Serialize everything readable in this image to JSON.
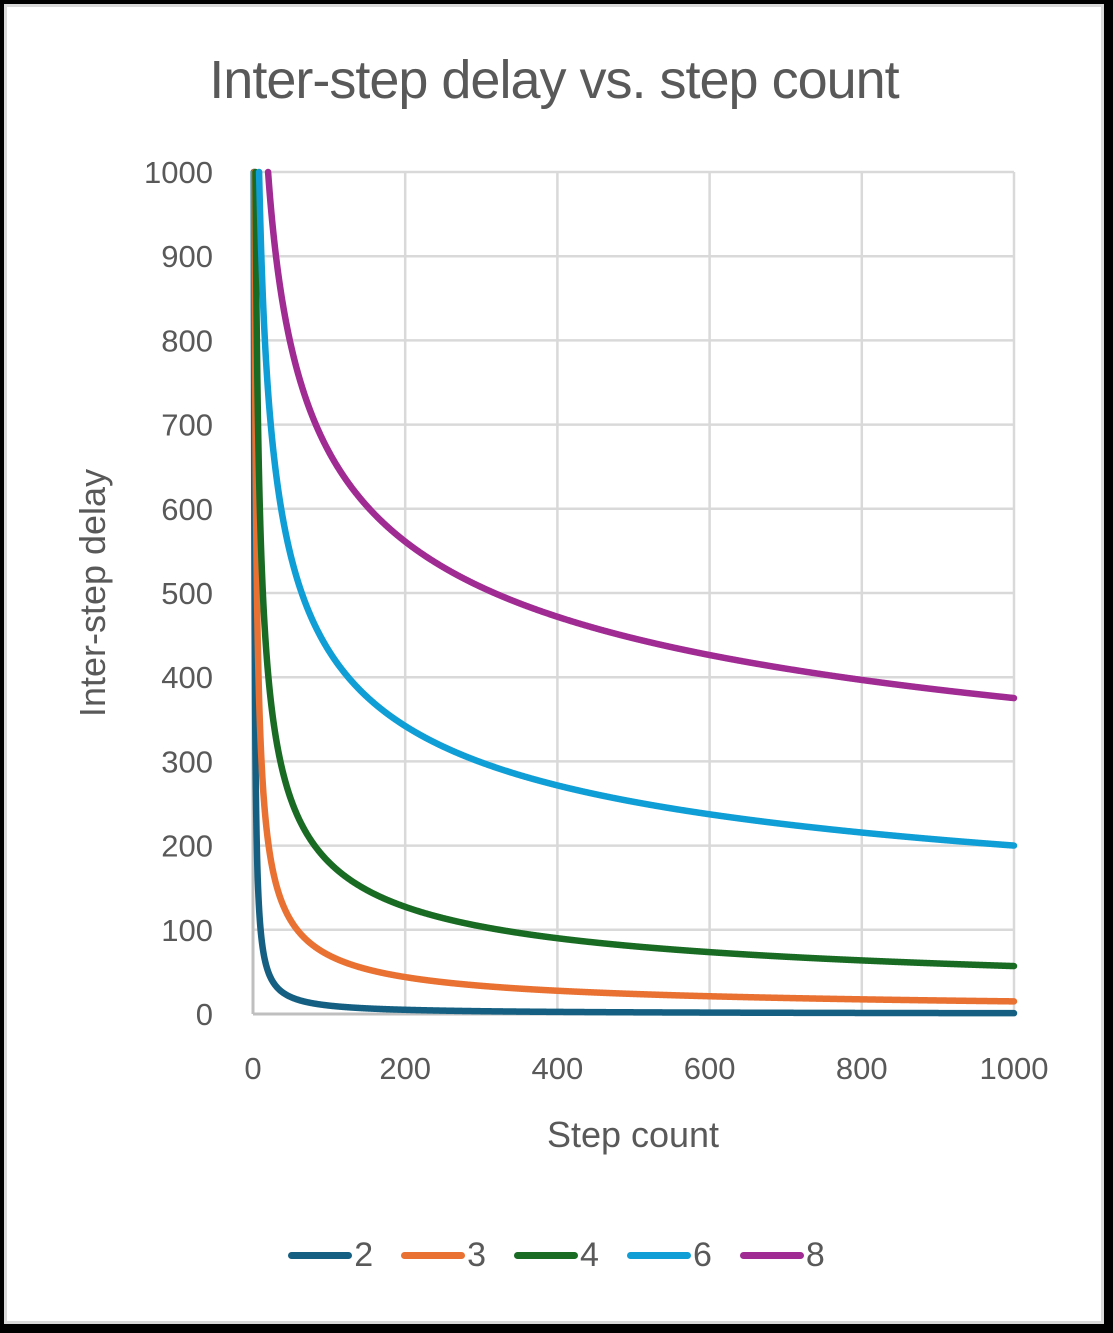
{
  "chart_data": {
    "type": "line",
    "title": "Inter-step delay vs. step count",
    "xlabel": "Step count",
    "ylabel": "Inter-step delay",
    "xlim": [
      0,
      1000
    ],
    "ylim": [
      0,
      1000
    ],
    "x_ticks": [
      0,
      200,
      400,
      600,
      800,
      1000
    ],
    "y_ticks": [
      0,
      100,
      200,
      300,
      400,
      500,
      600,
      700,
      800,
      900,
      1000
    ],
    "grid": true,
    "legend_position": "bottom",
    "x": [
      10,
      20,
      50,
      100,
      200,
      300,
      400,
      500,
      600,
      700,
      800,
      900,
      1000
    ],
    "series": [
      {
        "name": "2",
        "color": "#156082",
        "coef": 1000,
        "exponent": 1.0,
        "values": [
          100,
          50,
          20,
          10,
          5,
          3.3,
          2.5,
          2,
          1.7,
          1.4,
          1.3,
          1.1,
          1
        ]
      },
      {
        "name": "3",
        "color": "#E97132",
        "coef": 1500,
        "exponent": 0.6667,
        "values": [
          323,
          204,
          111,
          70,
          44,
          34,
          28,
          24,
          21,
          19,
          17,
          16,
          15
        ]
      },
      {
        "name": "4",
        "color": "#196B24",
        "coef": 1800,
        "exponent": 0.5,
        "values": [
          569,
          402,
          255,
          180,
          127,
          104,
          90,
          80,
          73,
          68,
          64,
          60,
          57
        ]
      },
      {
        "name": "6",
        "color": "#0F9ED5",
        "coef": 2000,
        "exponent": 0.3333,
        "values": [
          928,
          737,
          543,
          431,
          342,
          299,
          271,
          252,
          237,
          225,
          215,
          207,
          200
        ]
      },
      {
        "name": "8",
        "color": "#A02B93",
        "coef": 2110,
        "exponent": 0.25,
        "values": [
          1000,
          1000,
          793,
          667,
          561,
          507,
          471,
          446,
          424,
          408,
          397,
          385,
          375
        ]
      }
    ]
  },
  "legend": {
    "items": [
      {
        "label": "2",
        "color": "#156082"
      },
      {
        "label": "3",
        "color": "#E97132"
      },
      {
        "label": "4",
        "color": "#196B24"
      },
      {
        "label": "6",
        "color": "#0F9ED5"
      },
      {
        "label": "8",
        "color": "#A02B93"
      }
    ]
  }
}
